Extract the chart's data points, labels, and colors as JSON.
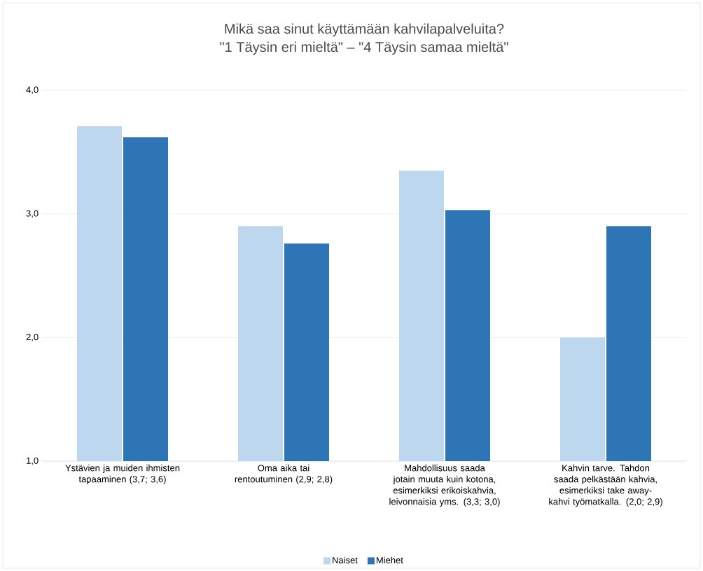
{
  "chart_data": {
    "type": "bar",
    "title": "Mikä saa sinut käyttämään kahvilapalveluita?",
    "subtitle": "\"1 Täysin eri mieltä\" – \"4 Täysin samaa mieltä\"",
    "categories": [
      "Ystävien ja muiden ihmisten tapaaminen (3,7; 3,6)",
      "Oma aika tai rentoutuminen (2,9; 2,8)",
      "Mahdollisuus saada jotain muuta kuin kotona, esimerkiksi erikoiskahvia, leivonnaisia yms. (3,3; 3,0)",
      "Kahvin tarve. Tahdon saada pelkästään kahvia, esimerkiksi take away-kahvi työmatkalla. (2,0; 2,9)"
    ],
    "series": [
      {
        "name": "Naiset",
        "color": "#bdd7ee",
        "values": [
          3.71,
          2.9,
          3.35,
          2.0
        ]
      },
      {
        "name": "Miehet",
        "color": "#2e75b6",
        "values": [
          3.62,
          2.76,
          3.03,
          2.9
        ]
      }
    ],
    "ylim": [
      1,
      4
    ],
    "yticks": [
      {
        "value": 1,
        "label": "1,0"
      },
      {
        "value": 2,
        "label": "2,0"
      },
      {
        "value": 3,
        "label": "3,0"
      },
      {
        "value": 4,
        "label": "4,0"
      }
    ],
    "grid": "y",
    "legend": "bottom"
  }
}
